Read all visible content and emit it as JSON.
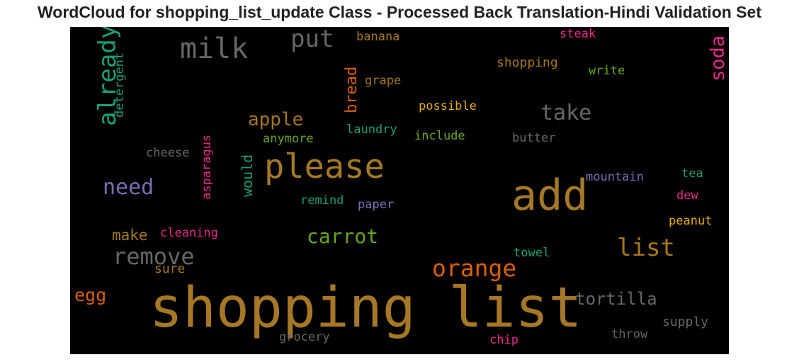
{
  "title": "WordCloud for shopping_list_update Class - Processed Back Translation-Hindi Validation Set",
  "words": [
    {
      "text": "shopping list",
      "color": "#a67826"
    },
    {
      "text": "add",
      "color": "#a67826"
    },
    {
      "text": "please",
      "color": "#a67826"
    },
    {
      "text": "milk",
      "color": "#666666"
    },
    {
      "text": "put",
      "color": "#666666"
    },
    {
      "text": "already",
      "color": "#1b9e77"
    },
    {
      "text": "detergent",
      "color": "#1b9e77"
    },
    {
      "text": "banana",
      "color": "#a6761d"
    },
    {
      "text": "steak",
      "color": "#e7298a"
    },
    {
      "text": "soda",
      "color": "#e7298a"
    },
    {
      "text": "shopping",
      "color": "#a6761d"
    },
    {
      "text": "write",
      "color": "#66a61e"
    },
    {
      "text": "bread",
      "color": "#d95f02"
    },
    {
      "text": "grape",
      "color": "#a6761d"
    },
    {
      "text": "possible",
      "color": "#e6ab02"
    },
    {
      "text": "take",
      "color": "#666666"
    },
    {
      "text": "apple",
      "color": "#a6761d"
    },
    {
      "text": "laundry",
      "color": "#1b9e77"
    },
    {
      "text": "include",
      "color": "#66a61e"
    },
    {
      "text": "butter",
      "color": "#666666"
    },
    {
      "text": "anymore",
      "color": "#66a61e"
    },
    {
      "text": "cheese",
      "color": "#666666"
    },
    {
      "text": "asparagus",
      "color": "#e7298a"
    },
    {
      "text": "would",
      "color": "#1b9e77"
    },
    {
      "text": "mountain",
      "color": "#7570b3"
    },
    {
      "text": "tea",
      "color": "#1b9e77"
    },
    {
      "text": "need",
      "color": "#7570b3"
    },
    {
      "text": "dew",
      "color": "#e7298a"
    },
    {
      "text": "remind",
      "color": "#1b9e77"
    },
    {
      "text": "paper",
      "color": "#7570b3"
    },
    {
      "text": "peanut",
      "color": "#e6ab02"
    },
    {
      "text": "make",
      "color": "#a6761d"
    },
    {
      "text": "cleaning",
      "color": "#e7298a"
    },
    {
      "text": "carrot",
      "color": "#66a61e"
    },
    {
      "text": "list",
      "color": "#a6761d"
    },
    {
      "text": "remove",
      "color": "#666666"
    },
    {
      "text": "towel",
      "color": "#1b9e77"
    },
    {
      "text": "sure",
      "color": "#a6761d"
    },
    {
      "text": "orange",
      "color": "#d95f02"
    },
    {
      "text": "egg",
      "color": "#d95f02"
    },
    {
      "text": "tortilla",
      "color": "#666666"
    },
    {
      "text": "supply",
      "color": "#666666"
    },
    {
      "text": "throw",
      "color": "#666666"
    },
    {
      "text": "grocery",
      "color": "#666666"
    },
    {
      "text": "chip",
      "color": "#e7298a"
    }
  ]
}
